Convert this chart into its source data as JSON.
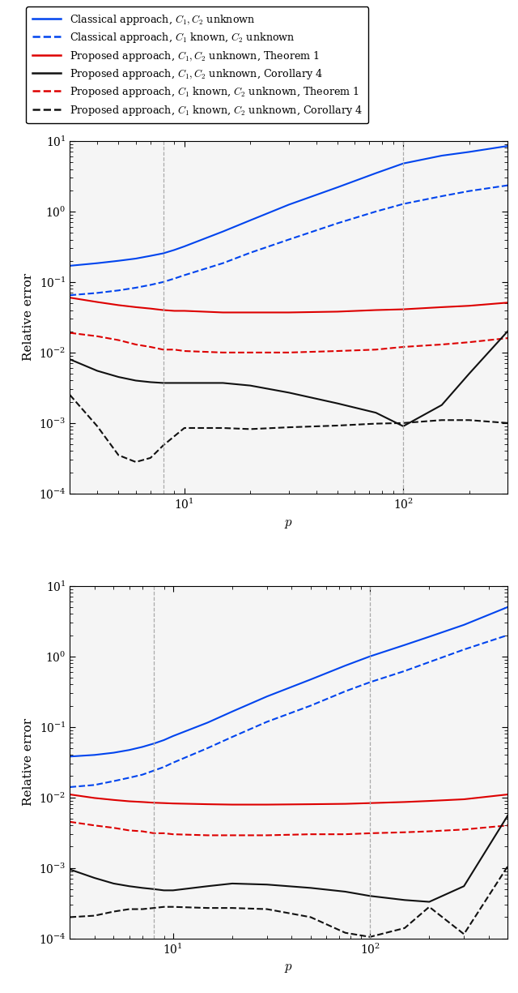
{
  "p_values": [
    3,
    4,
    5,
    6,
    7,
    8,
    9,
    10,
    15,
    20,
    30,
    50,
    75,
    100,
    150,
    200,
    300
  ],
  "plot1": {
    "blue_solid": [
      0.17,
      0.185,
      0.2,
      0.215,
      0.235,
      0.255,
      0.285,
      0.32,
      0.52,
      0.75,
      1.25,
      2.2,
      3.5,
      4.8,
      6.2,
      7.0,
      8.5
    ],
    "blue_dashed": [
      0.065,
      0.07,
      0.076,
      0.083,
      0.091,
      0.1,
      0.112,
      0.125,
      0.185,
      0.26,
      0.4,
      0.68,
      1.0,
      1.28,
      1.65,
      1.95,
      2.35
    ],
    "red_solid": [
      0.06,
      0.052,
      0.047,
      0.044,
      0.042,
      0.04,
      0.039,
      0.039,
      0.037,
      0.037,
      0.037,
      0.038,
      0.04,
      0.041,
      0.044,
      0.046,
      0.051
    ],
    "red_dashed": [
      0.019,
      0.017,
      0.015,
      0.013,
      0.012,
      0.011,
      0.011,
      0.0105,
      0.01,
      0.01,
      0.01,
      0.0105,
      0.011,
      0.012,
      0.013,
      0.014,
      0.016
    ],
    "black_solid": [
      0.008,
      0.0055,
      0.0045,
      0.004,
      0.0038,
      0.0037,
      0.0037,
      0.0037,
      0.0037,
      0.0034,
      0.0027,
      0.0019,
      0.0014,
      0.0009,
      0.0018,
      0.005,
      0.02
    ],
    "black_dashed": [
      0.0025,
      0.0009,
      0.00035,
      0.00028,
      0.00032,
      0.00048,
      0.00065,
      0.00085,
      0.00085,
      0.00082,
      0.00087,
      0.00092,
      0.00098,
      0.001,
      0.0011,
      0.0011,
      0.001
    ],
    "vlines": [
      8,
      100
    ],
    "ylim": [
      0.0001,
      10
    ],
    "ylabel": "Relative error",
    "xlabel": "$p$"
  },
  "plot2": {
    "blue_solid": [
      0.038,
      0.04,
      0.043,
      0.047,
      0.052,
      0.058,
      0.065,
      0.074,
      0.115,
      0.165,
      0.27,
      0.47,
      0.74,
      1.0,
      1.45,
      1.9,
      2.8,
      5.0
    ],
    "blue_dashed": [
      0.014,
      0.015,
      0.017,
      0.019,
      0.021,
      0.024,
      0.027,
      0.031,
      0.05,
      0.072,
      0.118,
      0.2,
      0.32,
      0.43,
      0.62,
      0.83,
      1.25,
      2.0
    ],
    "red_solid": [
      0.011,
      0.0098,
      0.0092,
      0.0088,
      0.0086,
      0.0084,
      0.0083,
      0.0082,
      0.008,
      0.0079,
      0.0079,
      0.008,
      0.0081,
      0.0083,
      0.0086,
      0.0089,
      0.0094,
      0.011
    ],
    "red_dashed": [
      0.0045,
      0.004,
      0.0037,
      0.0034,
      0.0033,
      0.0031,
      0.0031,
      0.003,
      0.0029,
      0.0029,
      0.0029,
      0.003,
      0.003,
      0.0031,
      0.0032,
      0.0033,
      0.0035,
      0.004
    ],
    "black_solid": [
      0.00095,
      0.00072,
      0.0006,
      0.00055,
      0.00052,
      0.0005,
      0.00048,
      0.00048,
      0.00055,
      0.0006,
      0.00058,
      0.00052,
      0.00046,
      0.0004,
      0.00035,
      0.00033,
      0.00055,
      0.0055
    ],
    "black_dashed": [
      0.0002,
      0.00021,
      0.00024,
      0.00026,
      0.00026,
      0.00027,
      0.00028,
      0.00028,
      0.00027,
      0.00027,
      0.00026,
      0.0002,
      0.00012,
      0.000105,
      0.00014,
      0.00028,
      0.000115,
      0.00105
    ],
    "vlines": [
      8,
      100
    ],
    "ylim": [
      0.0001,
      10
    ],
    "ylabel": "Relative error",
    "xlabel": "$p$"
  },
  "legend_entries": [
    {
      "label": "Classical approach, $C_1,C_2$ unknown",
      "color": "#0044ee",
      "linestyle": "solid"
    },
    {
      "label": "Classical approach, $C_1$ known, $C_2$ unknown",
      "color": "#0044ee",
      "linestyle": "dashed"
    },
    {
      "label": "Proposed approach, $C_1,C_2$ unknown, Theorem 1",
      "color": "#dd0000",
      "linestyle": "solid"
    },
    {
      "label": "Proposed approach, $C_1,C_2$ unknown, Corollary 4",
      "color": "#111111",
      "linestyle": "solid"
    },
    {
      "label": "Proposed approach, $C_1$ known, $C_2$ unknown, Theorem 1",
      "color": "#dd0000",
      "linestyle": "dashed"
    },
    {
      "label": "Proposed approach, $C_1$ known, $C_2$ unknown, Corollary 4",
      "color": "#111111",
      "linestyle": "dashed"
    }
  ],
  "p2_values": [
    3,
    4,
    5,
    6,
    7,
    8,
    9,
    10,
    15,
    20,
    30,
    50,
    75,
    100,
    150,
    200,
    300,
    500
  ]
}
